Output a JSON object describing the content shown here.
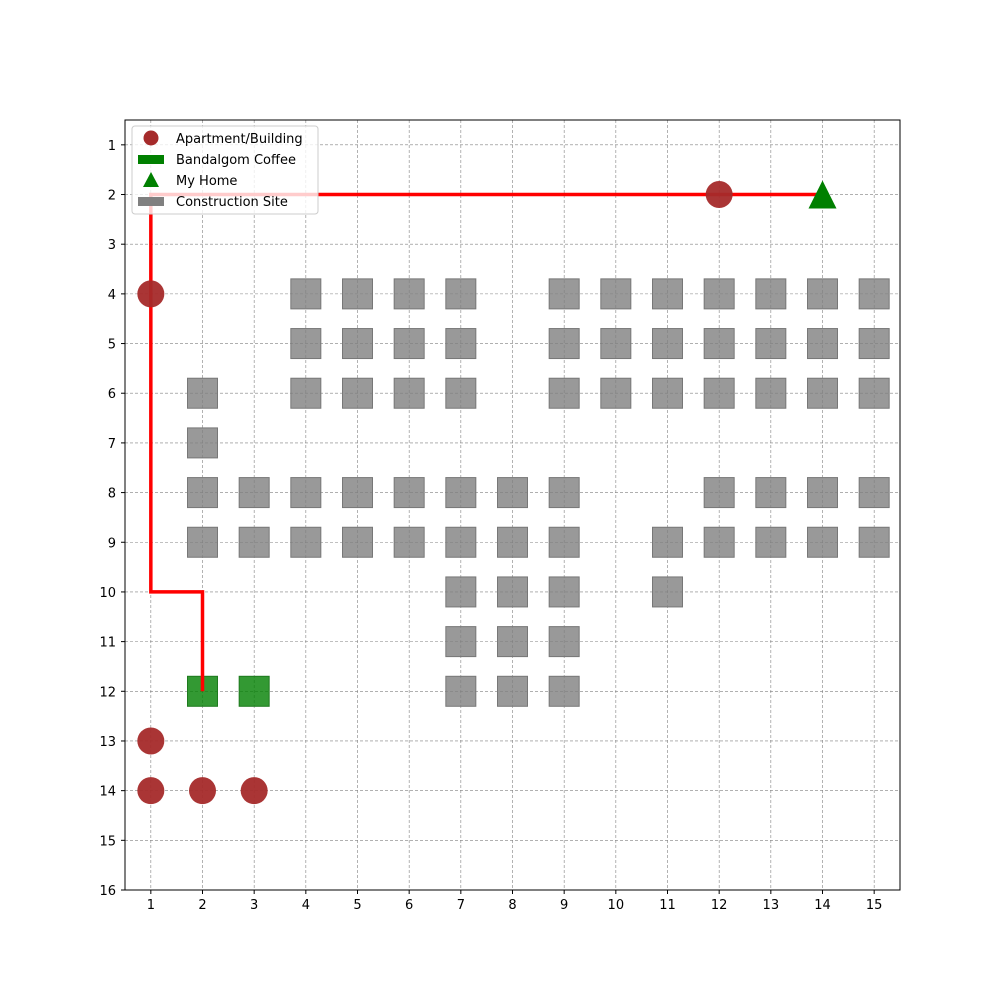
{
  "chart_data": {
    "type": "scatter",
    "title": "",
    "xlabel": "",
    "ylabel": "",
    "xlim": [
      0.5,
      15.5
    ],
    "ylim": [
      16,
      0.5
    ],
    "y_inverted": true,
    "grid": true,
    "legend_position": "top-left",
    "x_ticks": [
      1,
      2,
      3,
      4,
      5,
      6,
      7,
      8,
      9,
      10,
      11,
      12,
      13,
      14,
      15
    ],
    "y_ticks": [
      1,
      2,
      3,
      4,
      5,
      6,
      7,
      8,
      9,
      10,
      11,
      12,
      13,
      14,
      15,
      16
    ],
    "colors": {
      "apartment": "#a52a2a",
      "coffee": "#008000",
      "home": "#008000",
      "construction": "#808080",
      "path": "#ff0000",
      "grid": "#808080"
    },
    "series": [
      {
        "name": "Apartment/Building",
        "marker": "circle",
        "points": [
          [
            12,
            2
          ],
          [
            1,
            4
          ],
          [
            1,
            13
          ],
          [
            1,
            14
          ],
          [
            2,
            14
          ],
          [
            3,
            14
          ]
        ]
      },
      {
        "name": "Bandalgom Coffee",
        "marker": "square",
        "points": [
          [
            2,
            12
          ],
          [
            3,
            12
          ]
        ]
      },
      {
        "name": "My Home",
        "marker": "triangle",
        "points": [
          [
            14,
            2
          ]
        ]
      },
      {
        "name": "Construction Site",
        "marker": "square",
        "points": [
          [
            4,
            4
          ],
          [
            5,
            4
          ],
          [
            6,
            4
          ],
          [
            7,
            4
          ],
          [
            9,
            4
          ],
          [
            10,
            4
          ],
          [
            11,
            4
          ],
          [
            12,
            4
          ],
          [
            13,
            4
          ],
          [
            14,
            4
          ],
          [
            15,
            4
          ],
          [
            4,
            5
          ],
          [
            5,
            5
          ],
          [
            6,
            5
          ],
          [
            7,
            5
          ],
          [
            9,
            5
          ],
          [
            10,
            5
          ],
          [
            11,
            5
          ],
          [
            12,
            5
          ],
          [
            13,
            5
          ],
          [
            14,
            5
          ],
          [
            15,
            5
          ],
          [
            2,
            6
          ],
          [
            4,
            6
          ],
          [
            5,
            6
          ],
          [
            6,
            6
          ],
          [
            7,
            6
          ],
          [
            9,
            6
          ],
          [
            10,
            6
          ],
          [
            11,
            6
          ],
          [
            12,
            6
          ],
          [
            13,
            6
          ],
          [
            14,
            6
          ],
          [
            15,
            6
          ],
          [
            2,
            7
          ],
          [
            2,
            8
          ],
          [
            3,
            8
          ],
          [
            4,
            8
          ],
          [
            5,
            8
          ],
          [
            6,
            8
          ],
          [
            7,
            8
          ],
          [
            8,
            8
          ],
          [
            9,
            8
          ],
          [
            12,
            8
          ],
          [
            13,
            8
          ],
          [
            14,
            8
          ],
          [
            15,
            8
          ],
          [
            2,
            9
          ],
          [
            3,
            9
          ],
          [
            4,
            9
          ],
          [
            5,
            9
          ],
          [
            6,
            9
          ],
          [
            7,
            9
          ],
          [
            8,
            9
          ],
          [
            9,
            9
          ],
          [
            11,
            9
          ],
          [
            12,
            9
          ],
          [
            13,
            9
          ],
          [
            14,
            9
          ],
          [
            15,
            9
          ],
          [
            7,
            10
          ],
          [
            8,
            10
          ],
          [
            9,
            10
          ],
          [
            11,
            10
          ],
          [
            7,
            11
          ],
          [
            8,
            11
          ],
          [
            9,
            11
          ],
          [
            7,
            12
          ],
          [
            8,
            12
          ],
          [
            9,
            12
          ]
        ]
      }
    ],
    "path": [
      [
        2,
        12
      ],
      [
        2,
        10
      ],
      [
        1,
        10
      ],
      [
        1,
        2
      ],
      [
        14,
        2
      ]
    ]
  }
}
